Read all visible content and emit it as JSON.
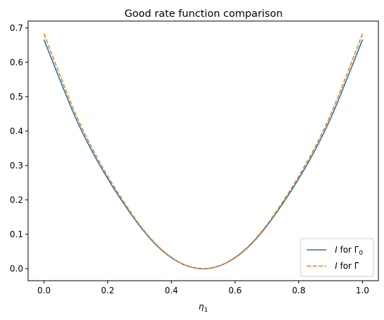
{
  "chart_data": {
    "type": "line",
    "title": "Good rate function comparison",
    "xlabel": "η",
    "xlabel_sub": "1",
    "ylabel": "",
    "xlim": [
      -0.05,
      1.05
    ],
    "ylim": [
      -0.035,
      0.72
    ],
    "xticks": [
      0.0,
      0.2,
      0.4,
      0.6,
      0.8,
      1.0
    ],
    "xtick_labels": [
      "0.0",
      "0.2",
      "0.4",
      "0.6",
      "0.8",
      "1.0"
    ],
    "yticks": [
      0.0,
      0.1,
      0.2,
      0.3,
      0.4,
      0.5,
      0.6,
      0.7
    ],
    "ytick_labels": [
      "0.0",
      "0.1",
      "0.2",
      "0.3",
      "0.4",
      "0.5",
      "0.6",
      "0.7"
    ],
    "grid": false,
    "legend_position": "lower-right",
    "series": [
      {
        "name": "I for Γ0",
        "legend_italic": "I",
        "legend_mid": " for Γ",
        "legend_sub": "0",
        "color": "#1f77b4",
        "style": "solid",
        "x": [
          0.0,
          0.05,
          0.1,
          0.15,
          0.2,
          0.25,
          0.3,
          0.35,
          0.4,
          0.45,
          0.5,
          0.55,
          0.6,
          0.65,
          0.7,
          0.75,
          0.8,
          0.85,
          0.9,
          0.95,
          1.0
        ],
        "y": [
          0.666,
          0.549,
          0.437,
          0.343,
          0.262,
          0.19,
          0.125,
          0.071,
          0.032,
          0.008,
          0.0,
          0.008,
          0.032,
          0.071,
          0.125,
          0.19,
          0.262,
          0.343,
          0.437,
          0.549,
          0.666
        ]
      },
      {
        "name": "I for Γ̄",
        "legend_italic": "I",
        "legend_mid": " for Γ̄",
        "legend_sub": "",
        "color": "#ff7f0e",
        "style": "dashed",
        "x": [
          0.0,
          0.05,
          0.1,
          0.15,
          0.2,
          0.25,
          0.3,
          0.35,
          0.4,
          0.45,
          0.5,
          0.55,
          0.6,
          0.65,
          0.7,
          0.75,
          0.8,
          0.85,
          0.9,
          0.95,
          1.0
        ],
        "y": [
          0.683,
          0.563,
          0.448,
          0.352,
          0.269,
          0.195,
          0.128,
          0.073,
          0.033,
          0.008,
          0.0,
          0.008,
          0.033,
          0.073,
          0.128,
          0.195,
          0.269,
          0.352,
          0.448,
          0.563,
          0.683
        ]
      }
    ]
  }
}
